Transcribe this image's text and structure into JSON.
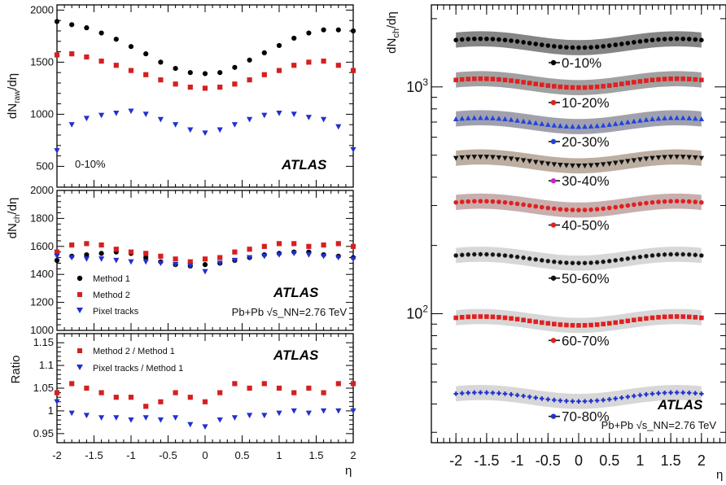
{
  "chart_data": [
    {
      "type": "scatter",
      "panel": "left-top",
      "ylabel": "dN_raw/dη",
      "ylim": [
        300,
        2050
      ],
      "xlim": [
        -2,
        2
      ],
      "yticks": [
        "500",
        "1000",
        "1500",
        "2000"
      ],
      "xticks": [
        "-2",
        "-1.5",
        "-1",
        "-0.5",
        "0",
        "0.5",
        "1",
        "1.5",
        "2"
      ],
      "annotation": "0-10%",
      "brand": "ATLAS",
      "series": [
        {
          "name": "Method 1",
          "color": "#000000",
          "marker": "circle",
          "x": [
            -2.0,
            -1.8,
            -1.6,
            -1.4,
            -1.2,
            -1.0,
            -0.8,
            -0.6,
            -0.4,
            -0.2,
            0.0,
            0.2,
            0.4,
            0.6,
            0.8,
            1.0,
            1.2,
            1.4,
            1.6,
            1.8,
            2.0
          ],
          "y": [
            1890,
            1860,
            1830,
            1780,
            1720,
            1650,
            1580,
            1500,
            1440,
            1400,
            1390,
            1400,
            1450,
            1520,
            1590,
            1660,
            1730,
            1780,
            1810,
            1810,
            1800
          ]
        },
        {
          "name": "Method 2",
          "color": "#d42020",
          "marker": "square",
          "x": [
            -2.0,
            -1.8,
            -1.6,
            -1.4,
            -1.2,
            -1.0,
            -0.8,
            -0.6,
            -0.4,
            -0.2,
            0.0,
            0.2,
            0.4,
            0.6,
            0.8,
            1.0,
            1.2,
            1.4,
            1.6,
            1.8,
            2.0
          ],
          "y": [
            1570,
            1580,
            1550,
            1510,
            1470,
            1420,
            1380,
            1330,
            1290,
            1260,
            1250,
            1260,
            1290,
            1330,
            1380,
            1420,
            1470,
            1500,
            1510,
            1470,
            1420
          ]
        },
        {
          "name": "Pixel tracks",
          "color": "#2030d0",
          "marker": "triangle-down",
          "x": [
            -2.0,
            -1.8,
            -1.6,
            -1.4,
            -1.2,
            -1.0,
            -0.8,
            -0.6,
            -0.4,
            -0.2,
            0.0,
            0.2,
            0.4,
            0.6,
            0.8,
            1.0,
            1.2,
            1.4,
            1.6,
            1.8,
            2.0
          ],
          "y": [
            650,
            900,
            960,
            990,
            1010,
            1030,
            1000,
            950,
            900,
            850,
            820,
            850,
            900,
            950,
            990,
            1010,
            1000,
            970,
            950,
            880,
            660
          ]
        }
      ]
    },
    {
      "type": "scatter",
      "panel": "left-middle",
      "ylabel": "dN_ch/dη",
      "ylim": [
        1000,
        2000
      ],
      "xlim": [
        -2,
        2
      ],
      "yticks": [
        "1000",
        "1200",
        "1400",
        "1600",
        "1800",
        "2000"
      ],
      "brand": "ATLAS",
      "collision": "Pb+Pb √s_NN=2.76 TeV",
      "legend": [
        "Method 1",
        "Method 2",
        "Pixel tracks"
      ],
      "series": [
        {
          "name": "Method 1",
          "color": "#000000",
          "marker": "circle",
          "x": [
            -2.0,
            -1.8,
            -1.6,
            -1.4,
            -1.2,
            -1.0,
            -0.8,
            -0.6,
            -0.4,
            -0.2,
            0.0,
            0.2,
            0.4,
            0.6,
            0.8,
            1.0,
            1.2,
            1.4,
            1.6,
            1.8,
            2.0
          ],
          "y": [
            1500,
            1530,
            1540,
            1550,
            1560,
            1550,
            1520,
            1490,
            1470,
            1460,
            1470,
            1480,
            1500,
            1520,
            1540,
            1550,
            1560,
            1560,
            1540,
            1530,
            1520
          ]
        },
        {
          "name": "Method 2",
          "color": "#d42020",
          "marker": "square",
          "x": [
            -2.0,
            -1.8,
            -1.6,
            -1.4,
            -1.2,
            -1.0,
            -0.8,
            -0.6,
            -0.4,
            -0.2,
            0.0,
            0.2,
            0.4,
            0.6,
            0.8,
            1.0,
            1.2,
            1.4,
            1.6,
            1.8,
            2.0
          ],
          "y": [
            1560,
            1610,
            1620,
            1610,
            1580,
            1560,
            1550,
            1530,
            1510,
            1490,
            1510,
            1520,
            1560,
            1580,
            1600,
            1620,
            1620,
            1600,
            1610,
            1620,
            1600
          ]
        },
        {
          "name": "Pixel tracks",
          "color": "#2030d0",
          "marker": "triangle-down",
          "x": [
            -2.0,
            -1.8,
            -1.6,
            -1.4,
            -1.2,
            -1.0,
            -0.8,
            -0.6,
            -0.4,
            -0.2,
            0.0,
            0.2,
            0.4,
            0.6,
            0.8,
            1.0,
            1.2,
            1.4,
            1.6,
            1.8,
            2.0
          ],
          "y": [
            1530,
            1520,
            1510,
            1510,
            1500,
            1490,
            1490,
            1480,
            1470,
            1460,
            1420,
            1480,
            1500,
            1520,
            1530,
            1540,
            1550,
            1540,
            1530,
            1520,
            1510
          ]
        }
      ]
    },
    {
      "type": "scatter",
      "panel": "left-bottom",
      "ylabel": "Ratio",
      "xlabel": "η",
      "ylim": [
        0.93,
        1.17
      ],
      "xlim": [
        -2,
        2
      ],
      "yticks": [
        "0.95",
        "1",
        "1.05",
        "1.1",
        "1.15"
      ],
      "brand": "ATLAS",
      "legend": [
        "Method 2 / Method 1",
        "Pixel tracks / Method 1"
      ],
      "series": [
        {
          "name": "Method 2 / Method 1",
          "color": "#d42020",
          "marker": "square",
          "x": [
            -2.0,
            -1.8,
            -1.6,
            -1.4,
            -1.2,
            -1.0,
            -0.8,
            -0.6,
            -0.4,
            -0.2,
            0.0,
            0.2,
            0.4,
            0.6,
            0.8,
            1.0,
            1.2,
            1.4,
            1.6,
            1.8,
            2.0
          ],
          "y": [
            1.04,
            1.06,
            1.05,
            1.04,
            1.03,
            1.03,
            1.01,
            1.02,
            1.04,
            1.03,
            1.02,
            1.04,
            1.06,
            1.05,
            1.06,
            1.05,
            1.04,
            1.05,
            1.04,
            1.06,
            1.06
          ]
        },
        {
          "name": "Pixel tracks / Method 1",
          "color": "#2030d0",
          "marker": "triangle-down",
          "x": [
            -2.0,
            -1.8,
            -1.6,
            -1.4,
            -1.2,
            -1.0,
            -0.8,
            -0.6,
            -0.4,
            -0.2,
            0.0,
            0.2,
            0.4,
            0.6,
            0.8,
            1.0,
            1.2,
            1.4,
            1.6,
            1.8,
            2.0
          ],
          "y": [
            1.02,
            0.995,
            0.99,
            0.985,
            0.985,
            0.98,
            0.985,
            0.98,
            0.985,
            0.97,
            0.965,
            0.98,
            0.985,
            0.99,
            0.99,
            0.995,
            1.0,
            0.995,
            1.0,
            1.0,
            1.0
          ]
        }
      ]
    },
    {
      "type": "scatter",
      "panel": "right",
      "ylabel": "dN_ch/dη",
      "xlabel": "η",
      "yscale": "log",
      "ylim": [
        27,
        2300
      ],
      "xlim": [
        -2.4,
        2.4
      ],
      "xticks": [
        "-2",
        "-1.5",
        "-1",
        "-0.5",
        "0",
        "0.5",
        "1",
        "1.5",
        "2"
      ],
      "yticks": [
        "10^2",
        "10^3"
      ],
      "brand": "ATLAS",
      "collision": "Pb+Pb √s_NN=2.76 TeV",
      "x": [
        -2.0,
        -1.9,
        -1.8,
        -1.7,
        -1.6,
        -1.5,
        -1.4,
        -1.3,
        -1.2,
        -1.1,
        -1.0,
        -0.9,
        -0.8,
        -0.7,
        -0.6,
        -0.5,
        -0.4,
        -0.3,
        -0.2,
        -0.1,
        0.0,
        0.1,
        0.2,
        0.3,
        0.4,
        0.5,
        0.6,
        0.7,
        0.8,
        0.9,
        1.0,
        1.1,
        1.2,
        1.3,
        1.4,
        1.5,
        1.6,
        1.7,
        1.8,
        1.9,
        2.0
      ],
      "series": [
        {
          "name": "0-10%",
          "color": "#000000",
          "band": "#707070",
          "marker": "circle",
          "level": 1560
        },
        {
          "name": "10-20%",
          "color": "#e02020",
          "band": "#909090",
          "marker": "square",
          "level": 1040
        },
        {
          "name": "20-30%",
          "color": "#2244dd",
          "band": "#9090a0",
          "marker": "triangle-up",
          "level": 700
        },
        {
          "name": "30-40%",
          "color": "#111111",
          "band": "#b0a090",
          "marker": "triangle-down",
          "level": 470
        },
        {
          "name": "40-50%",
          "color": "#e02020",
          "band": "#c0a0a0",
          "marker": "circle",
          "level": 300
        },
        {
          "name": "50-60%",
          "color": "#111111",
          "band": "#d0d0d0",
          "marker": "star",
          "level": 175
        },
        {
          "name": "60-70%",
          "color": "#e02020",
          "band": "#d0d0d0",
          "marker": "square",
          "level": 93
        },
        {
          "name": "70-80%",
          "color": "#2030d0",
          "band": "#d0d0d0",
          "marker": "cross",
          "level": 43
        }
      ],
      "legend_dot_colors": [
        "#000000",
        "#e02020",
        "#2244dd",
        "#cc22cc",
        "#e02020",
        "#111111",
        "#e02020",
        "#2030d0"
      ]
    }
  ]
}
